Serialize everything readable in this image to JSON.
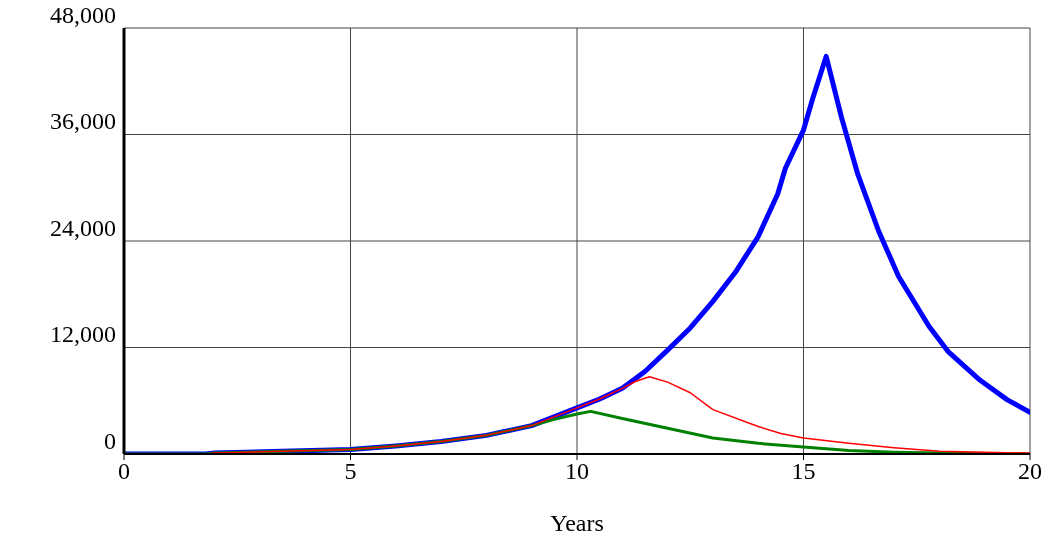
{
  "chart_data": {
    "type": "line",
    "xlabel": "Years",
    "xlim": [
      0,
      20
    ],
    "xticks": [
      0,
      5,
      10,
      15,
      20
    ],
    "ylim": [
      0,
      48000
    ],
    "yticks": [
      {
        "value": 0,
        "label": "0"
      },
      {
        "value": 12000,
        "label": "12,000"
      },
      {
        "value": 24000,
        "label": "24,000"
      },
      {
        "value": 36000,
        "label": "36,000"
      },
      {
        "value": 48000,
        "label": "48,000"
      }
    ],
    "grid": true,
    "legend": false,
    "marker": "none",
    "line_style": "solid",
    "series": [
      {
        "color": "#0000ff",
        "x": [
          0,
          1.8,
          2,
          3.5,
          5,
          6,
          7,
          8,
          9,
          10,
          10.5,
          11,
          11.5,
          12,
          12.5,
          13,
          13.5,
          14,
          14.43,
          14.6,
          15,
          15.2,
          15.5,
          15.84,
          16.2,
          16.66,
          17.1,
          17.77,
          18.2,
          18.9,
          19.5,
          20
        ],
        "values": [
          0,
          0,
          100,
          300,
          500,
          900,
          1400,
          2100,
          3200,
          5200,
          6200,
          7400,
          9300,
          11700,
          14200,
          17200,
          20500,
          24500,
          29300,
          32200,
          36500,
          40000,
          44800,
          37900,
          31500,
          25100,
          20000,
          14400,
          11500,
          8300,
          6100,
          4700
        ]
      },
      {
        "color": "#ff0000",
        "x": [
          0,
          1.8,
          2,
          3.5,
          5,
          6,
          7,
          8,
          9,
          10,
          10.5,
          11,
          11.3,
          11.6,
          12,
          12.5,
          13,
          14,
          14.5,
          15,
          16,
          17,
          18,
          19,
          20
        ],
        "values": [
          0,
          0,
          100,
          300,
          500,
          900,
          1400,
          2100,
          3200,
          5200,
          6200,
          7400,
          8200,
          8700,
          8100,
          6900,
          5000,
          3100,
          2300,
          1800,
          1200,
          700,
          300,
          200,
          100
        ]
      },
      {
        "color": "#008000",
        "x": [
          0,
          1.8,
          2,
          3.5,
          5,
          6,
          7,
          8,
          9,
          9.5,
          10,
          10.3,
          11,
          12,
          13,
          14,
          15,
          16,
          17,
          18,
          20
        ],
        "values": [
          0,
          0,
          100,
          300,
          500,
          900,
          1400,
          2100,
          3200,
          3900,
          4500,
          4800,
          4000,
          2900,
          1800,
          1200,
          800,
          400,
          200,
          100,
          0
        ]
      }
    ]
  }
}
